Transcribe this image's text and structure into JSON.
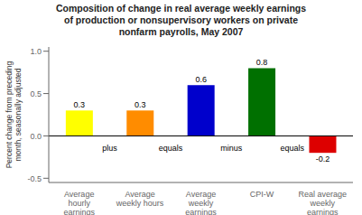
{
  "chart_data": {
    "type": "bar",
    "title": "Composition of change in real average weekly earnings\nof production or nonsupervisory workers on private\nnonfarm payrolls, May 2007",
    "ylabel": "Percent change from preceding\nmonth, seasonally adjusted",
    "categories": [
      "Average\nhourly\nearnings",
      "Average\nweekly hours",
      "Average\nweekly\nearnings",
      "CPI-W",
      "Real average\nweekly\nearnings"
    ],
    "values": [
      0.3,
      0.3,
      0.6,
      0.8,
      -0.2
    ],
    "colors": [
      "#ffff00",
      "#ff8c00",
      "#0000cc",
      "#007000",
      "#dd0000"
    ],
    "annotations": [
      "plus",
      "equals",
      "minus",
      "equals"
    ],
    "ylim": [
      -0.55,
      1.05
    ],
    "yticks": [
      -0.5,
      {
        "value": 0,
        "label": "0.0"
      },
      0.5,
      {
        "value": 1,
        "label": "1.0"
      }
    ],
    "data_labels": true,
    "grid": false
  }
}
